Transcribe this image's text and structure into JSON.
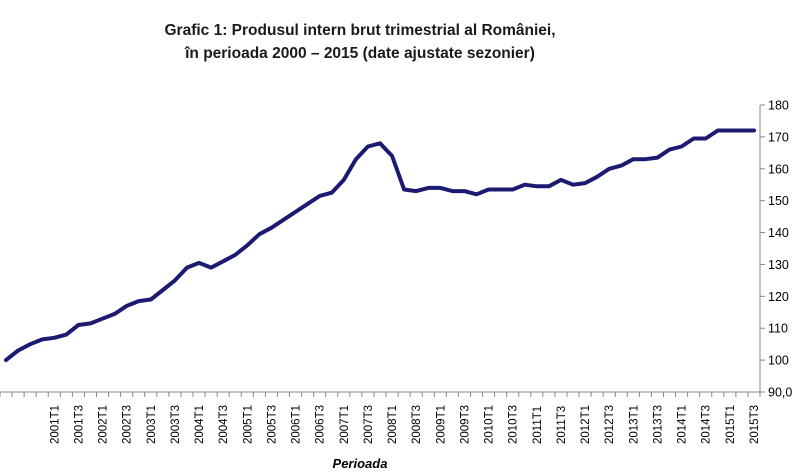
{
  "chart_data": {
    "type": "line",
    "title": "Grafic 1: Produsul intern brut trimestrial al României,",
    "subtitle": "în perioada 2000 – 2015 (date ajustate sezonier)",
    "xlabel": "Perioada",
    "ylabel": "",
    "ylim": [
      90,
      180
    ],
    "yticks": [
      "90,0",
      "100",
      "110",
      "120",
      "130",
      "140",
      "150",
      "160",
      "170",
      "180"
    ],
    "x_tick_labels": [
      "2001T1",
      "2001T3",
      "2002T1",
      "2002T3",
      "2003T1",
      "2003T3",
      "2004T1",
      "2004T3",
      "2005T1",
      "2005T3",
      "2006T1",
      "2006T3",
      "2007T1",
      "2007T3",
      "2008T1",
      "2008T3",
      "2009T1",
      "2009T3",
      "2010T1",
      "2010T3",
      "2011T1",
      "2011T3",
      "2012T1",
      "2012T3",
      "2013T1",
      "2013T3",
      "2014T1",
      "2014T3",
      "2015T1",
      "2015T3"
    ],
    "grid": false,
    "line_color": "#1b1b72",
    "x": [
      "2000T1",
      "2000T2",
      "2000T3",
      "2000T4",
      "2001T1",
      "2001T2",
      "2001T3",
      "2001T4",
      "2002T1",
      "2002T2",
      "2002T3",
      "2002T4",
      "2003T1",
      "2003T2",
      "2003T3",
      "2003T4",
      "2004T1",
      "2004T2",
      "2004T3",
      "2004T4",
      "2005T1",
      "2005T2",
      "2005T3",
      "2005T4",
      "2006T1",
      "2006T2",
      "2006T3",
      "2006T4",
      "2007T1",
      "2007T2",
      "2007T3",
      "2007T4",
      "2008T1",
      "2008T2",
      "2008T3",
      "2008T4",
      "2009T1",
      "2009T2",
      "2009T3",
      "2009T4",
      "2010T1",
      "2010T2",
      "2010T3",
      "2010T4",
      "2011T1",
      "2011T2",
      "2011T3",
      "2011T4",
      "2012T1",
      "2012T2",
      "2012T3",
      "2012T4",
      "2013T1",
      "2013T2",
      "2013T3",
      "2013T4",
      "2014T1",
      "2014T2",
      "2014T3",
      "2014T4",
      "2015T1",
      "2015T2",
      "2015T3"
    ],
    "values": [
      100,
      103,
      105,
      106.5,
      107,
      108,
      111,
      111.5,
      113,
      114.5,
      117,
      118.5,
      119,
      122,
      125,
      129,
      130.5,
      129,
      131,
      133,
      136,
      139.5,
      141.5,
      144,
      146.5,
      149,
      151.5,
      152.5,
      156.5,
      163,
      167,
      168,
      164,
      153.5,
      153,
      154,
      154,
      153,
      153,
      152,
      153.5,
      153.5,
      153.5,
      155,
      154.5,
      154.5,
      156.5,
      155,
      155.5,
      157.5,
      160,
      161,
      163,
      163,
      163.5,
      166,
      167,
      169.5,
      169.5,
      172,
      172,
      172,
      172
    ]
  }
}
